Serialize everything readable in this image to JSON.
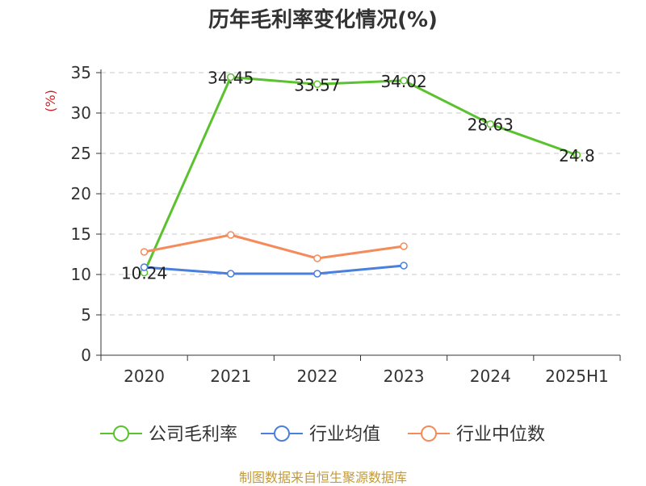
{
  "chart_data": {
    "type": "line",
    "title": "历年毛利率变化情况(%)",
    "ylabel": "(%)",
    "categories": [
      "2020",
      "2021",
      "2022",
      "2023",
      "2024",
      "2025H1"
    ],
    "ylim": [
      0,
      35
    ],
    "yticks": [
      0,
      5,
      10,
      15,
      20,
      25,
      30,
      35
    ],
    "grid": true,
    "legend_position": "bottom",
    "series": [
      {
        "name": "公司毛利率",
        "color": "#5ac22e",
        "values": [
          10.24,
          34.45,
          33.57,
          34.02,
          28.63,
          24.8
        ],
        "labels": [
          "10.24",
          "34.45",
          "33.57",
          "34.02",
          "28.63",
          "24.8"
        ]
      },
      {
        "name": "行业均值",
        "color": "#4a7fdc",
        "values": [
          10.9,
          10.1,
          10.1,
          11.1,
          null,
          null
        ]
      },
      {
        "name": "行业中位数",
        "color": "#f58b5a",
        "values": [
          12.8,
          14.9,
          12.0,
          13.5,
          null,
          null
        ]
      }
    ]
  },
  "source_text": "制图数据来自恒生聚源数据库"
}
